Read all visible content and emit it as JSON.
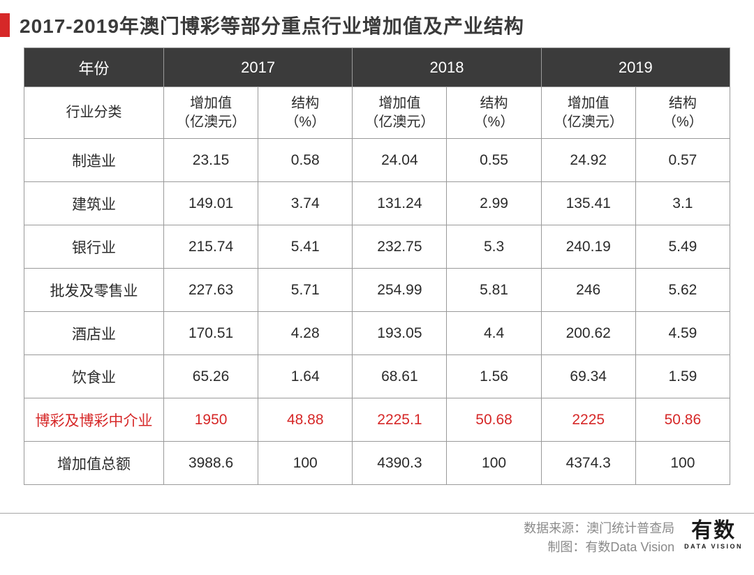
{
  "title": "2017-2019年澳门博彩等部分重点行业增加值及产业结构",
  "colors": {
    "accent": "#d62828",
    "header_bg": "#3b3b3b",
    "header_text": "#ffffff",
    "border": "#9a9a9a",
    "body_text": "#2b2b2b",
    "highlight_text": "#d62828",
    "footer_text": "#8a8a8a"
  },
  "table": {
    "header": {
      "year_label": "年份",
      "years": [
        "2017",
        "2018",
        "2019"
      ],
      "category_label": "行业分类",
      "val_label_l1": "增加值",
      "val_label_l2": "（亿澳元）",
      "pct_label_l1": "结构",
      "pct_label_l2": "（%）"
    },
    "rows": [
      {
        "name": "制造业",
        "highlight": false,
        "cells": [
          "23.15",
          "0.58",
          "24.04",
          "0.55",
          "24.92",
          "0.57"
        ]
      },
      {
        "name": "建筑业",
        "highlight": false,
        "cells": [
          "149.01",
          "3.74",
          "131.24",
          "2.99",
          "135.41",
          "3.1"
        ]
      },
      {
        "name": "银行业",
        "highlight": false,
        "cells": [
          "215.74",
          "5.41",
          "232.75",
          "5.3",
          "240.19",
          "5.49"
        ]
      },
      {
        "name": "批发及零售业",
        "highlight": false,
        "cells": [
          "227.63",
          "5.71",
          "254.99",
          "5.81",
          "246",
          "5.62"
        ]
      },
      {
        "name": "酒店业",
        "highlight": false,
        "cells": [
          "170.51",
          "4.28",
          "193.05",
          "4.4",
          "200.62",
          "4.59"
        ]
      },
      {
        "name": "饮食业",
        "highlight": false,
        "cells": [
          "65.26",
          "1.64",
          "68.61",
          "1.56",
          "69.34",
          "1.59"
        ]
      },
      {
        "name": "博彩及博彩中介业",
        "highlight": true,
        "cells": [
          "1950",
          "48.88",
          "2225.1",
          "50.68",
          "2225",
          "50.86"
        ]
      },
      {
        "name": "增加值总额",
        "highlight": false,
        "cells": [
          "3988.6",
          "100",
          "4390.3",
          "100",
          "4374.3",
          "100"
        ]
      }
    ]
  },
  "footer": {
    "source_label": "数据来源：",
    "source_value": "澳门统计普查局",
    "maker_label": "制图：",
    "maker_value": "有数Data Vision",
    "logo_cn": "有数",
    "logo_en": "DATA VISION"
  }
}
